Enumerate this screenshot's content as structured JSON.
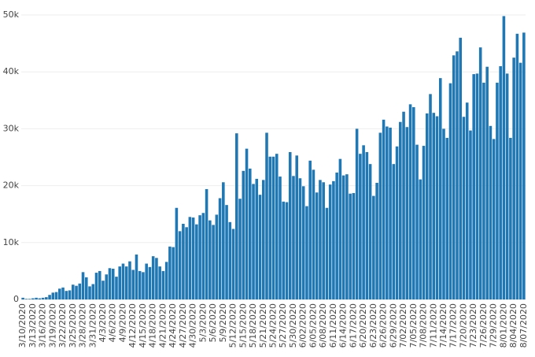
{
  "chart_data": {
    "type": "bar",
    "color": "#1f77b4",
    "grid": true,
    "ylim": [
      0,
      50000
    ],
    "yticks": [
      0,
      {
        "value": 10000,
        "label": "10k"
      },
      {
        "value": 20000,
        "label": "20k"
      },
      {
        "value": 30000,
        "label": "30k"
      },
      {
        "value": 40000,
        "label": "40k"
      },
      {
        "value": 50000,
        "label": "50k"
      }
    ],
    "categories": [
      "3/10/2020",
      null,
      null,
      "3/13/2020",
      null,
      null,
      "3/16/2020",
      null,
      null,
      "3/19/2020",
      null,
      null,
      "3/22/2020",
      null,
      null,
      "3/25/2020",
      null,
      null,
      "3/28/2020",
      null,
      null,
      "3/31/2020",
      null,
      null,
      "4/3/2020",
      null,
      null,
      "4/6/2020",
      null,
      null,
      "4/9/2020",
      null,
      null,
      "4/12/2020",
      null,
      null,
      "4/15/2020",
      null,
      null,
      "4/18/2020",
      null,
      null,
      "4/21/2020",
      null,
      null,
      "4/24/2020",
      null,
      null,
      "4/27/2020",
      null,
      null,
      "4/30/2020",
      null,
      null,
      "5/3/2020",
      null,
      null,
      "5/6/2020",
      null,
      null,
      "5/9/2020",
      null,
      null,
      "5/12/2020",
      null,
      null,
      "5/15/2020",
      null,
      null,
      "5/18/2020",
      null,
      null,
      "5/21/2020",
      null,
      null,
      "5/24/2020",
      null,
      null,
      "5/27/2020",
      null,
      null,
      "5/30/2020",
      null,
      null,
      "6/02/2020",
      null,
      null,
      "6/05/2020",
      null,
      null,
      "6/08/2020",
      null,
      null,
      "6/11/2020",
      null,
      null,
      "6/14/2020",
      null,
      null,
      "6/17/2020",
      null,
      null,
      "6/20/2020",
      null,
      null,
      "6/23/2020",
      null,
      null,
      "6/26/2020",
      null,
      null,
      "6/29/2020",
      null,
      null,
      "7/02/2020",
      null,
      null,
      "7/05/2020",
      null,
      null,
      "7/08/2020",
      null,
      null,
      "7/11/2020",
      null,
      null,
      "7/14/2020",
      null,
      null,
      "7/17/2020",
      null,
      null,
      "7/20/2020",
      null,
      null,
      "7/23/2020",
      null,
      null,
      "7/26/2020",
      null,
      null,
      "7/29/2020",
      null,
      null,
      "8/01/2020",
      null,
      null,
      "8/04/2020",
      null,
      null,
      "8/07/2020"
    ],
    "values": [
      300,
      100,
      100,
      200,
      300,
      200,
      300,
      400,
      800,
      1200,
      1300,
      1900,
      2100,
      1500,
      1600,
      2600,
      2400,
      2800,
      4800,
      3900,
      2300,
      2700,
      4700,
      5000,
      3300,
      4400,
      5500,
      5400,
      4000,
      5800,
      6300,
      5800,
      6700,
      5200,
      7900,
      5000,
      4800,
      6300,
      5700,
      7600,
      7300,
      5800,
      5000,
      6600,
      9300,
      9200,
      16100,
      12000,
      13300,
      12700,
      14500,
      14400,
      13200,
      14800,
      15200,
      19400,
      13900,
      13100,
      14900,
      17800,
      20600,
      16600,
      13600,
      12400,
      29200,
      17700,
      22600,
      26500,
      23000,
      20300,
      21200,
      18400,
      21000,
      29300,
      25100,
      25100,
      25600,
      21600,
      17200,
      17100,
      25900,
      21700,
      25300,
      21300,
      19900,
      16400,
      24400,
      22800,
      18800,
      21000,
      20600,
      16100,
      20200,
      20800,
      22300,
      24700,
      21800,
      22000,
      18600,
      18700,
      30000,
      25600,
      27100,
      25900,
      23800,
      18200,
      20500,
      29300,
      31600,
      30400,
      30200,
      23800,
      26900,
      31200,
      33000,
      30300,
      34300,
      33800,
      27200,
      21100,
      27000,
      32700,
      36100,
      32800,
      32200,
      38900,
      30000,
      28400,
      38000,
      42900,
      43600,
      46000,
      32100,
      34600,
      29700,
      39600,
      39700,
      44300,
      38100,
      40900,
      30500,
      28200,
      38100,
      41000,
      49800,
      39700,
      28400,
      42500,
      46700,
      41600,
      46900
    ]
  }
}
